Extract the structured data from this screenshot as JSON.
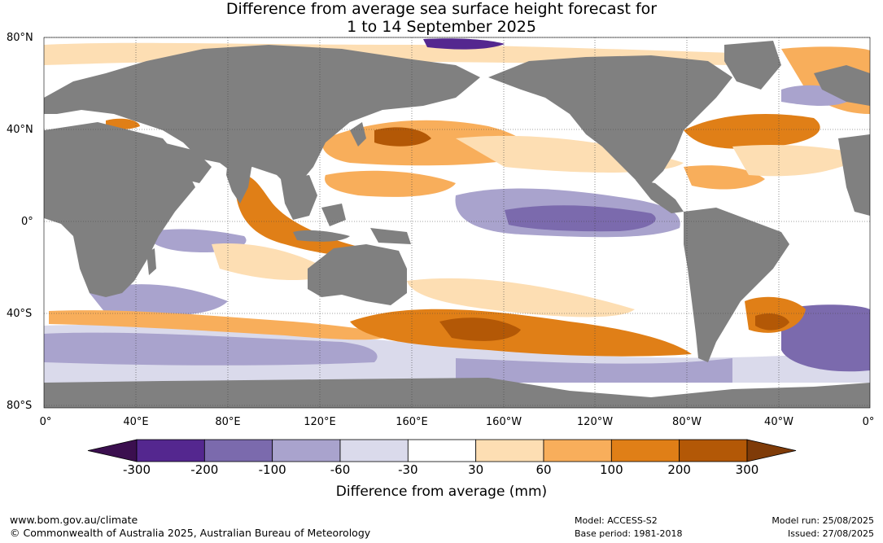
{
  "title_line1": "Difference from average sea surface height forecast for",
  "title_line2": "1 to 14 September 2025",
  "lat_labels": [
    "80°N",
    "40°N",
    "0°",
    "40°S",
    "80°S"
  ],
  "lon_labels": [
    "0°",
    "40°E",
    "80°E",
    "120°E",
    "160°E",
    "160°W",
    "120°W",
    "80°W",
    "40°W",
    "0°"
  ],
  "colorbar": {
    "title": "Difference from average (mm)",
    "ticks": [
      "-300",
      "-200",
      "-100",
      "-60",
      "-30",
      "30",
      "60",
      "100",
      "200",
      "300"
    ],
    "colors": [
      "#3b0f4f",
      "#54278f",
      "#7b6aad",
      "#a9a3cd",
      "#dadaeb",
      "#ffffff",
      "#fddeb3",
      "#f8ae5b",
      "#e07f17",
      "#b35806",
      "#7f3b08"
    ]
  },
  "colors": {
    "land": "#808080",
    "ocean_neutral": "#ffffff",
    "grid": "#000000"
  },
  "footer": {
    "website": "www.bom.gov.au/climate",
    "copyright": "© Commonwealth of Australia 2025, Australian Bureau of Meteorology",
    "model": "Model: ACCESS-S2",
    "base_period": "Base period: 1981-2018",
    "model_run": "Model run: 25/08/2025",
    "issued": "Issued: 27/08/2025"
  }
}
